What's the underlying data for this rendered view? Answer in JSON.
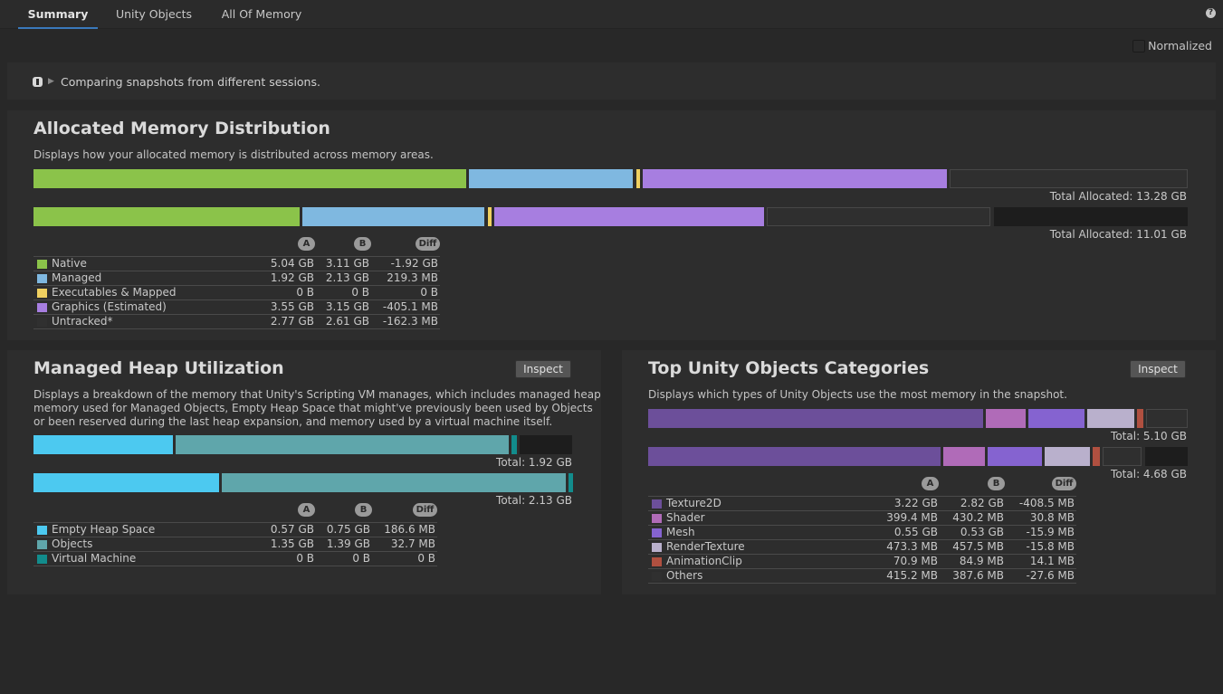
{
  "tabs": [
    {
      "label": "Summary",
      "active": true
    },
    {
      "label": "Unity Objects",
      "active": false
    },
    {
      "label": "All Of Memory",
      "active": false
    }
  ],
  "help_icon": "?",
  "normalized": {
    "label": "Normalized",
    "checked": false
  },
  "info_banner": {
    "text": "Comparing snapshots from different sessions.",
    "icon": "info-icon",
    "expander_icon": "triangle-right-icon"
  },
  "headers": {
    "a": "A",
    "b": "B",
    "diff": "Diff"
  },
  "colors": {
    "native": "#8bc34a",
    "managed": "#7fb8e0",
    "executables": "#f0d060",
    "graphics": "#a77ee0",
    "untracked": "#303030",
    "empty_heap": "#4cc9f0",
    "objects": "#5fa6ab",
    "virtual_machine": "#128c8c",
    "texture2d": "#6c4f9a",
    "shader": "#b06bb8",
    "mesh": "#8563d0",
    "render_texture": "#b9b0cc",
    "animation_clip": "#b05040",
    "others": "#303030"
  },
  "allocated": {
    "title": "Allocated Memory Distribution",
    "description": "Displays how your allocated memory is distributed across memory areas.",
    "total_a": "Total Allocated: 13.28 GB",
    "total_b": "Total Allocated: 11.01 GB",
    "rows": [
      {
        "label": "Native",
        "a": "5.04 GB",
        "b": "3.11 GB",
        "diff": "-1.92 GB"
      },
      {
        "label": "Managed",
        "a": "1.92 GB",
        "b": "2.13 GB",
        "diff": "219.3 MB"
      },
      {
        "label": "Executables & Mapped",
        "a": "0 B",
        "b": "0 B",
        "diff": "0 B"
      },
      {
        "label": "Graphics (Estimated)",
        "a": "3.55 GB",
        "b": "3.15 GB",
        "diff": "-405.1 MB"
      },
      {
        "label": "Untracked*",
        "a": "2.77 GB",
        "b": "2.61 GB",
        "diff": "-162.3 MB"
      }
    ]
  },
  "managed_heap": {
    "title": "Managed Heap Utilization",
    "inspect_label": "Inspect",
    "description_lines": [
      "Displays a breakdown of the memory that Unity's Scripting VM manages, which includes managed heap",
      "memory used for Managed Objects, Empty Heap Space that might've previously been used by Objects",
      "or been reserved during the last heap expansion, and memory used by a virtual machine itself."
    ],
    "total_a": "Total: 1.92 GB",
    "total_b": "Total: 2.13 GB",
    "rows": [
      {
        "label": "Empty Heap Space",
        "a": "0.57 GB",
        "b": "0.75 GB",
        "diff": "186.6 MB"
      },
      {
        "label": "Objects",
        "a": "1.35 GB",
        "b": "1.39 GB",
        "diff": "32.7 MB"
      },
      {
        "label": "Virtual Machine",
        "a": "0 B",
        "b": "0 B",
        "diff": "0 B"
      }
    ]
  },
  "top_objects": {
    "title": "Top Unity Objects Categories",
    "inspect_label": "Inspect",
    "description": "Displays which types of Unity Objects use the most memory in the snapshot.",
    "total_a": "Total: 5.10 GB",
    "total_b": "Total: 4.68 GB",
    "rows": [
      {
        "label": "Texture2D",
        "a": "3.22 GB",
        "b": "2.82 GB",
        "diff": "-408.5 MB"
      },
      {
        "label": "Shader",
        "a": "399.4 MB",
        "b": "430.2 MB",
        "diff": "30.8 MB"
      },
      {
        "label": "Mesh",
        "a": "0.55 GB",
        "b": "0.53 GB",
        "diff": "-15.9 MB"
      },
      {
        "label": "RenderTexture",
        "a": "473.3 MB",
        "b": "457.5 MB",
        "diff": "-15.8 MB"
      },
      {
        "label": "AnimationClip",
        "a": "70.9 MB",
        "b": "84.9 MB",
        "diff": "14.1 MB"
      },
      {
        "label": "Others",
        "a": "415.2 MB",
        "b": "387.6 MB",
        "diff": "-27.6 MB"
      }
    ]
  }
}
